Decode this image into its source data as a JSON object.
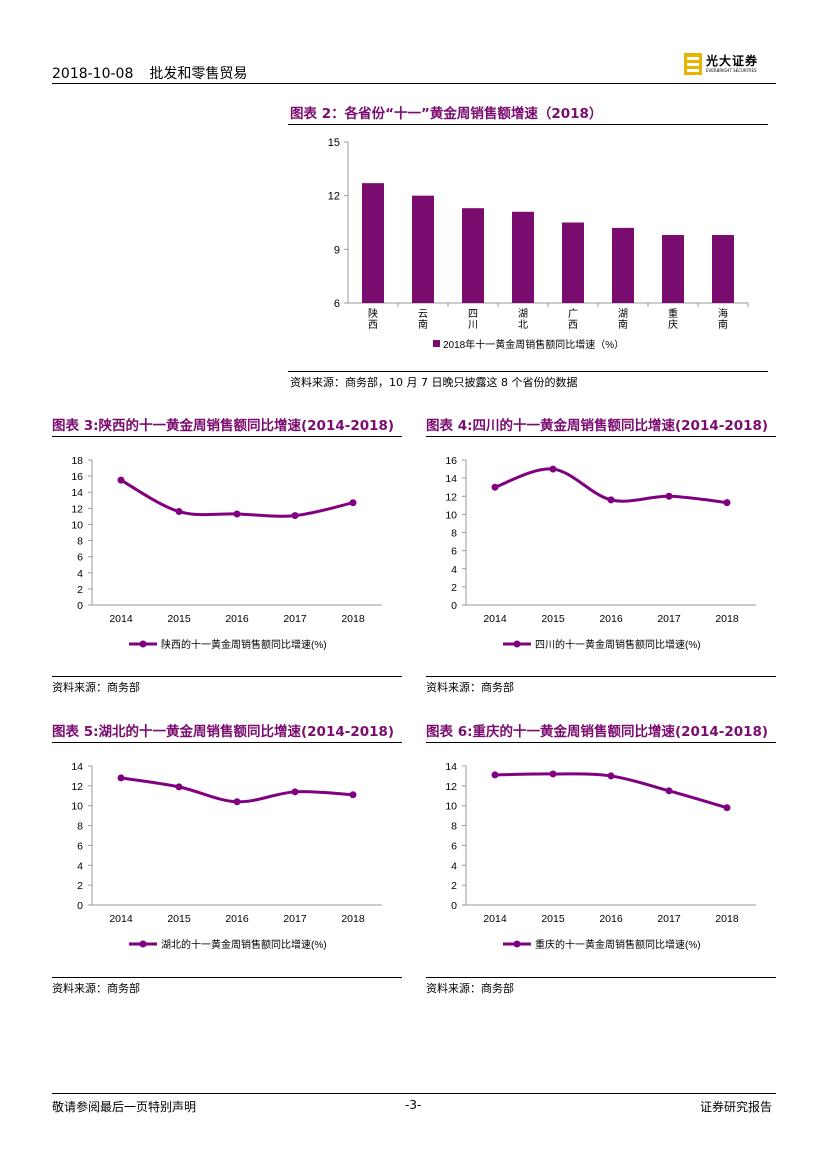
{
  "header": {
    "date": "2018-10-08",
    "category": "批发和零售贸易",
    "brand_cn": "光大证券",
    "brand_en": "EVERBRIGHT SECURITIES"
  },
  "footer": {
    "disclaimer": "敬请参阅最后一页特别声明",
    "page": "-3-",
    "report_type": "证券研究报告"
  },
  "colors": {
    "accent": "#7b0c6f",
    "bar": "#7b0c6f",
    "line": "#800080"
  },
  "fig2": {
    "title": "图表 2：各省份“十一”黄金周销售额增速（2018）",
    "source": "资料来源：商务部，10 月 7 日晚只披露这 8 个省份的数据"
  },
  "fig3": {
    "title": "图表 3:陕西的十一黄金周销售额同比增速(2014-2018)",
    "source": "资料来源：商务部"
  },
  "fig4": {
    "title": "图表 4:四川的十一黄金周销售额同比增速(2014-2018)",
    "source": "资料来源：商务部"
  },
  "fig5": {
    "title": "图表 5:湖北的十一黄金周销售额同比增速(2014-2018)",
    "source": "资料来源：商务部"
  },
  "fig6": {
    "title": "图表 6:重庆的十一黄金周销售额同比增速(2014-2018)",
    "source": "资料来源：商务部"
  },
  "chart_data": [
    {
      "id": "fig2",
      "type": "bar",
      "categories": [
        "陕西",
        "云南",
        "四川",
        "湖北",
        "广西",
        "湖南",
        "重庆",
        "海南"
      ],
      "values": [
        12.7,
        12.0,
        11.3,
        11.1,
        10.5,
        10.2,
        9.8,
        9.8
      ],
      "series_name": "2018年十一黄金周销售额同比增速（%）",
      "ylim": [
        6,
        15
      ],
      "yticks": [
        6,
        9,
        12,
        15
      ]
    },
    {
      "id": "fig3",
      "type": "line",
      "x": [
        "2014",
        "2015",
        "2016",
        "2017",
        "2018"
      ],
      "values": [
        15.5,
        11.6,
        11.3,
        11.1,
        12.7
      ],
      "series_name": "陕西的十一黄金周销售额同比增速(%)",
      "ylim": [
        0,
        18
      ],
      "yticks": [
        0,
        2,
        4,
        6,
        8,
        10,
        12,
        14,
        16,
        18
      ]
    },
    {
      "id": "fig4",
      "type": "line",
      "x": [
        "2014",
        "2015",
        "2016",
        "2017",
        "2018"
      ],
      "values": [
        13.0,
        15.0,
        11.6,
        12.0,
        11.3
      ],
      "series_name": "四川的十一黄金周销售额同比增速(%)",
      "ylim": [
        0,
        16
      ],
      "yticks": [
        0,
        2,
        4,
        6,
        8,
        10,
        12,
        14,
        16
      ]
    },
    {
      "id": "fig5",
      "type": "line",
      "x": [
        "2014",
        "2015",
        "2016",
        "2017",
        "2018"
      ],
      "values": [
        12.8,
        11.9,
        10.4,
        11.4,
        11.1
      ],
      "series_name": "湖北的十一黄金周销售额同比增速(%)",
      "ylim": [
        0,
        14
      ],
      "yticks": [
        0,
        2,
        4,
        6,
        8,
        10,
        12,
        14
      ]
    },
    {
      "id": "fig6",
      "type": "line",
      "x": [
        "2014",
        "2015",
        "2016",
        "2017",
        "2018"
      ],
      "values": [
        13.1,
        13.2,
        13.0,
        11.5,
        9.8
      ],
      "series_name": "重庆的十一黄金周销售额同比增速(%)",
      "ylim": [
        0,
        14
      ],
      "yticks": [
        0,
        2,
        4,
        6,
        8,
        10,
        12,
        14
      ]
    }
  ]
}
